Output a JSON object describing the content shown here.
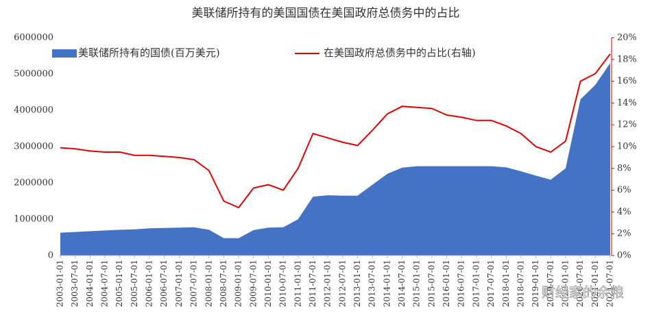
{
  "chart_data": {
    "type": "area_line",
    "title": "美联储所持有的美国国债在美国政府总债务中的占比",
    "x": [
      "2003-01-01",
      "2003-07-01",
      "2004-01-01",
      "2004-07-01",
      "2005-01-01",
      "2005-07-01",
      "2006-01-01",
      "2006-07-01",
      "2007-01-01",
      "2007-07-01",
      "2008-01-01",
      "2008-07-01",
      "2009-01-01",
      "2009-07-01",
      "2010-01-01",
      "2010-07-01",
      "2011-01-01",
      "2011-07-01",
      "2012-01-01",
      "2012-07-01",
      "2013-01-01",
      "2013-07-01",
      "2014-01-01",
      "2014-07-01",
      "2015-01-01",
      "2015-07-01",
      "2016-01-01",
      "2016-07-01",
      "2017-01-01",
      "2017-07-01",
      "2018-01-01",
      "2018-07-01",
      "2019-01-01",
      "2019-07-01",
      "2020-01-01",
      "2020-07-01",
      "2021-01-01",
      "2021-07-01"
    ],
    "series": [
      {
        "name": "美联储所持有的国债(百万美元)",
        "color": "#4472c4",
        "kind": "area",
        "values": [
          630000,
          650000,
          670000,
          690000,
          710000,
          720000,
          750000,
          760000,
          770000,
          780000,
          710000,
          480000,
          480000,
          700000,
          770000,
          780000,
          1000000,
          1620000,
          1660000,
          1650000,
          1650000,
          1950000,
          2250000,
          2420000,
          2460000,
          2460000,
          2460000,
          2460000,
          2460000,
          2460000,
          2430000,
          2320000,
          2200000,
          2090000,
          2400000,
          4300000,
          4700000,
          5300000
        ]
      },
      {
        "name": "在美国政府总债务中的占比(右轴)",
        "color": "#e00000",
        "kind": "line",
        "axis": "y2",
        "values": [
          9.9,
          9.8,
          9.6,
          9.5,
          9.5,
          9.2,
          9.2,
          9.1,
          9.0,
          8.8,
          7.8,
          5.0,
          4.4,
          6.2,
          6.5,
          6.0,
          8.0,
          11.2,
          10.8,
          10.4,
          10.1,
          11.5,
          13.0,
          13.7,
          13.6,
          13.5,
          12.9,
          12.7,
          12.4,
          12.4,
          11.9,
          11.2,
          10.0,
          9.5,
          10.5,
          16.0,
          16.7,
          18.5
        ]
      }
    ],
    "ylim": [
      0,
      6000000
    ],
    "yticks": [
      0,
      1000000,
      2000000,
      3000000,
      4000000,
      5000000,
      6000000
    ],
    "y2lim": [
      0,
      20
    ],
    "y2ticks": [
      {
        "value": 0,
        "label": "0%"
      },
      {
        "value": 2,
        "label": "2%"
      },
      {
        "value": 4,
        "label": "4%"
      },
      {
        "value": 6,
        "label": "6%"
      },
      {
        "value": 8,
        "label": "8%"
      },
      {
        "value": 10,
        "label": "10%"
      },
      {
        "value": 12,
        "label": "12%"
      },
      {
        "value": 14,
        "label": "14%"
      },
      {
        "value": 16,
        "label": "16%"
      },
      {
        "value": 18,
        "label": "18%"
      },
      {
        "value": 20,
        "label": "20%"
      }
    ],
    "legend": "top-left",
    "watermark": "财经家的余粮"
  }
}
